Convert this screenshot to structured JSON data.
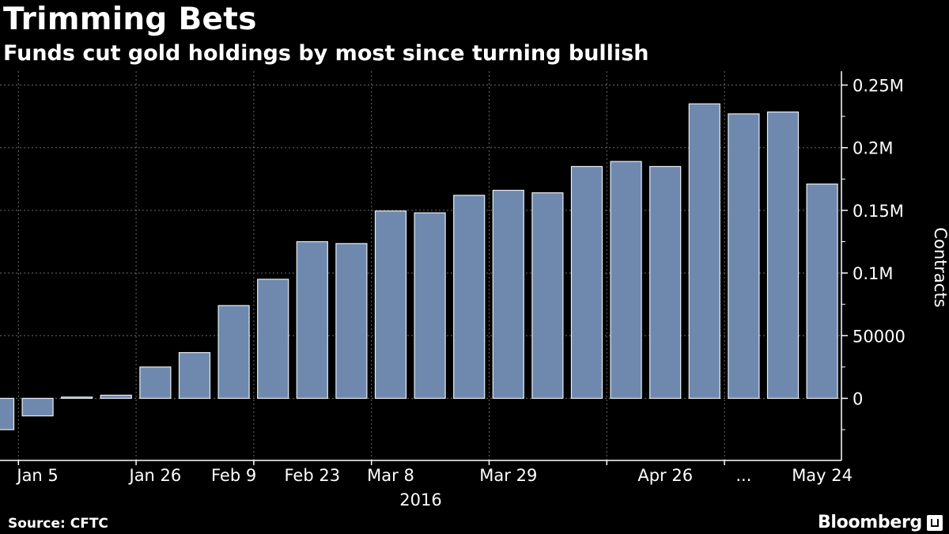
{
  "title": "Trimming Bets",
  "subtitle": "Funds cut gold holdings by most since turning bullish",
  "source": "Source: CFTC",
  "brand": "Bloomberg",
  "chart_data": {
    "type": "bar",
    "title": "Trimming Bets",
    "subtitle": "Funds cut gold holdings by most since turning bullish",
    "ylabel": "Contracts",
    "xlabel": "2016",
    "ylim": [
      -50000,
      260000
    ],
    "y_ticks": [
      0,
      50000,
      100000,
      150000,
      200000,
      250000
    ],
    "y_tick_labels": [
      "0",
      "50000",
      "0.1M",
      "0.15M",
      "0.2M",
      "0.25M"
    ],
    "x_tick_labels": [
      {
        "label": "Jan 5",
        "index": 1
      },
      {
        "label": "Jan 26",
        "index": 4
      },
      {
        "label": "Feb 9",
        "index": 6
      },
      {
        "label": "Feb 23",
        "index": 8
      },
      {
        "label": "Mar 8",
        "index": 10
      },
      {
        "label": "Mar 29",
        "index": 13
      },
      {
        "label": "Apr 26",
        "index": 17
      },
      {
        "label": "...",
        "index": 19
      },
      {
        "label": "May 24",
        "index": 21
      }
    ],
    "values": [
      -25000,
      -14000,
      1000,
      2500,
      25000,
      36500,
      74000,
      95000,
      125000,
      123500,
      149500,
      148000,
      162000,
      166000,
      164000,
      185000,
      189000,
      185000,
      235000,
      227000,
      228500,
      171000
    ],
    "colors": {
      "bar": "#6e89ad",
      "bar_edge": "#e8eef6",
      "grid": "#6a6a6a",
      "axis": "#ffffff"
    }
  }
}
